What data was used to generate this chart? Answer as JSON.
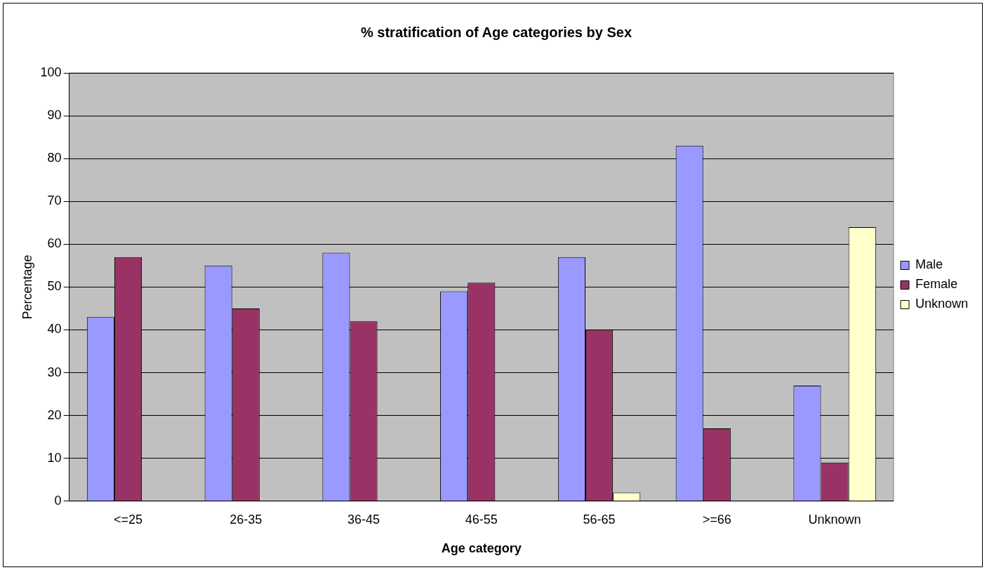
{
  "chart_data": {
    "type": "bar",
    "title": "% stratification of Age categories by Sex",
    "xlabel": "Age category",
    "ylabel": "Percentage",
    "categories": [
      "<=25",
      "26-35",
      "36-45",
      "46-55",
      "56-65",
      ">=66",
      "Unknown"
    ],
    "series": [
      {
        "name": "Male",
        "color": "#9999ff",
        "values": [
          43,
          55,
          58,
          49,
          57,
          83,
          27
        ]
      },
      {
        "name": "Female",
        "color": "#993366",
        "values": [
          57,
          45,
          42,
          51,
          40,
          17,
          9
        ]
      },
      {
        "name": "Unknown",
        "color": "#ffffcc",
        "values": [
          0,
          0,
          0,
          0,
          2,
          0,
          64
        ]
      }
    ],
    "ylim": [
      0,
      100
    ],
    "yticks": [
      0,
      10,
      20,
      30,
      40,
      50,
      60,
      70,
      80,
      90,
      100
    ],
    "grid": "y",
    "legend": "right"
  }
}
